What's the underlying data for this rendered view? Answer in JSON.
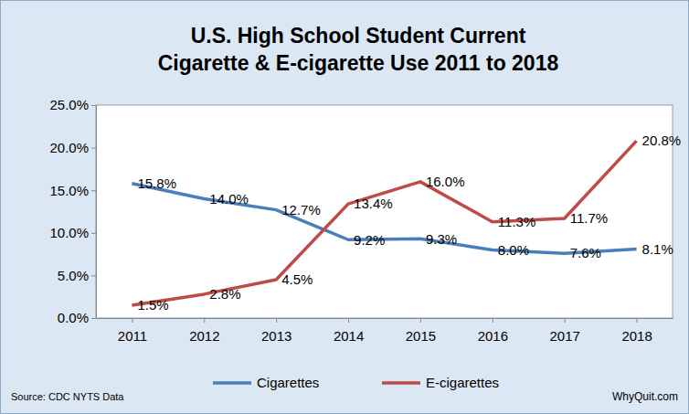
{
  "chart_data": {
    "type": "line",
    "title": [
      "U.S. High School Student Current",
      "Cigarette & E-cigarette Use 2011 to 2018"
    ],
    "annotations": [
      "Source:  CDC NYTS Data",
      "WhyQuit.com"
    ],
    "categories": [
      "2011",
      "2012",
      "2013",
      "2014",
      "2015",
      "2016",
      "2017",
      "2018"
    ],
    "series": [
      {
        "name": "Cigarettes",
        "color": "#4a7ebb",
        "values": [
          15.8,
          14.0,
          12.7,
          9.2,
          9.3,
          8.0,
          7.6,
          8.1
        ],
        "value_labels": [
          "15.8%",
          "14.0%",
          "12.7%",
          "9.2%",
          "9.3%",
          "8.0%",
          "7.6%",
          "8.1%"
        ]
      },
      {
        "name": "E-cigarettes",
        "color": "#be4b48",
        "values": [
          1.5,
          2.8,
          4.5,
          13.4,
          16.0,
          11.3,
          11.7,
          20.8
        ],
        "value_labels": [
          "1.5%",
          "2.8%",
          "4.5%",
          "13.4%",
          "16.0%",
          "11.3%",
          "11.7%",
          "20.8%"
        ]
      }
    ],
    "ylim": [
      0,
      25
    ],
    "yticks": [
      {
        "value": 0,
        "label": "0.0%"
      },
      {
        "value": 5,
        "label": "5.0%"
      },
      {
        "value": 10,
        "label": "10.0%"
      },
      {
        "value": 15,
        "label": "15.0%"
      },
      {
        "value": 20,
        "label": "20.0%"
      },
      {
        "value": 25,
        "label": "25.0%"
      }
    ],
    "grid": false,
    "legend": "bottom",
    "data_labels": true
  }
}
